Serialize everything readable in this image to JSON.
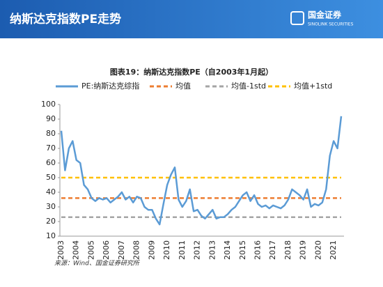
{
  "header": {
    "title": "纳斯达克指数PE走势",
    "logo_name": "国金证券",
    "logo_sub": "SINOLINK SECURITIES"
  },
  "chart_data": {
    "type": "line",
    "title": "图表19：纳斯达克指数PE（自2003年1月起）",
    "categories": [
      "2003",
      null,
      null,
      null,
      "2004",
      null,
      null,
      null,
      "2005",
      null,
      null,
      null,
      "2006",
      null,
      null,
      null,
      "2007",
      null,
      null,
      null,
      "2008",
      null,
      null,
      null,
      "2009",
      null,
      null,
      null,
      "2010",
      null,
      null,
      null,
      "2011",
      null,
      null,
      null,
      "2012",
      null,
      null,
      null,
      "2013",
      null,
      null,
      null,
      "2014",
      null,
      null,
      null,
      "2015",
      null,
      null,
      null,
      "2016",
      null,
      null,
      null,
      "2017",
      null,
      null,
      null,
      "2018",
      null,
      null,
      null,
      "2019",
      null,
      null,
      null,
      "2020",
      null,
      null,
      null,
      "2021",
      null,
      null
    ],
    "series": [
      {
        "name": "PE:纳斯达克综指",
        "color": "#5b9bd5",
        "values": [
          82,
          55,
          70,
          75,
          62,
          60,
          45,
          42,
          36,
          34,
          36,
          35,
          36,
          33,
          35,
          37,
          40,
          35,
          37,
          33,
          37,
          36,
          30,
          28,
          28,
          22,
          18,
          32,
          45,
          52,
          57,
          35,
          30,
          34,
          42,
          27,
          28,
          24,
          22,
          25,
          28,
          22,
          23,
          23,
          25,
          28,
          30,
          34,
          38,
          40,
          34,
          38,
          32,
          30,
          31,
          29,
          31,
          30,
          29,
          31,
          35,
          42,
          40,
          38,
          35,
          42,
          30,
          32,
          31,
          33,
          42,
          65,
          75,
          70,
          92
        ]
      }
    ],
    "hlines": [
      {
        "name": "均值",
        "color": "#ed7d31",
        "value": 36
      },
      {
        "name": "均值-1std",
        "color": "#a5a5a5",
        "value": 23
      },
      {
        "name": "均值+1std",
        "color": "#ffc000",
        "value": 50
      }
    ],
    "ylim": [
      10,
      100
    ],
    "yticks": [
      10,
      20,
      30,
      40,
      50,
      60,
      70,
      80,
      90,
      100
    ],
    "grid": false
  },
  "source": "来源：Wind、国金证券研究所"
}
